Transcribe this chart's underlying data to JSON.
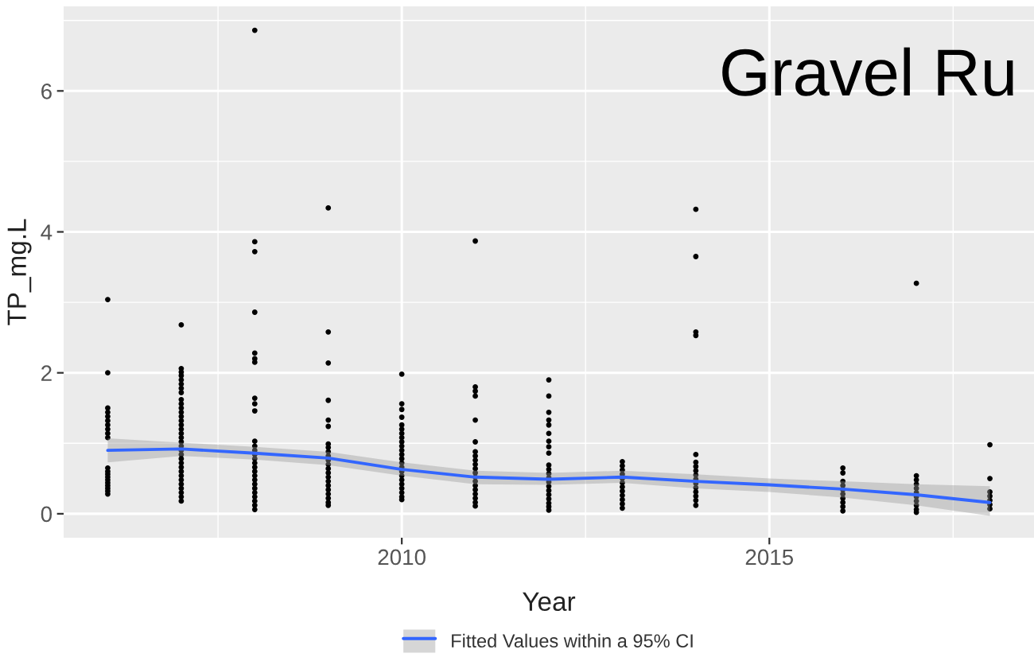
{
  "chart_data": {
    "type": "scatter",
    "title": "Gravel Ru",
    "xlabel": "Year",
    "ylabel": "TP_mg.L",
    "xlim": [
      2005.4,
      2018.6
    ],
    "xticks": [
      2010,
      2015
    ],
    "ylim": [
      -0.34,
      7.2
    ],
    "yticks": [
      0,
      2,
      4,
      6
    ],
    "grid": true,
    "legend": "bottom",
    "series": [
      {
        "color": "#000000",
        "marker": "circle",
        "x": [
          2006,
          2006,
          2006,
          2006,
          2006,
          2006,
          2006,
          2006,
          2006,
          2006,
          2006,
          2006,
          2006,
          2006,
          2006,
          2006,
          2006,
          2006,
          2006,
          2006,
          2007,
          2007,
          2007,
          2007,
          2007,
          2007,
          2007,
          2007,
          2007,
          2007,
          2007,
          2007,
          2007,
          2007,
          2007,
          2007,
          2007,
          2007,
          2007,
          2007,
          2007,
          2007,
          2007,
          2007,
          2007,
          2007,
          2007,
          2007,
          2007,
          2007,
          2007,
          2007,
          2007,
          2008,
          2008,
          2008,
          2008,
          2008,
          2008,
          2008,
          2008,
          2008,
          2008,
          2008,
          2008,
          2008,
          2008,
          2008,
          2008,
          2008,
          2008,
          2008,
          2008,
          2008,
          2008,
          2008,
          2008,
          2008,
          2008,
          2008,
          2009,
          2009,
          2009,
          2009,
          2009,
          2009,
          2009,
          2009,
          2009,
          2009,
          2009,
          2009,
          2009,
          2009,
          2009,
          2009,
          2009,
          2009,
          2009,
          2009,
          2009,
          2009,
          2010,
          2010,
          2010,
          2010,
          2010,
          2010,
          2010,
          2010,
          2010,
          2010,
          2010,
          2010,
          2010,
          2010,
          2010,
          2010,
          2010,
          2010,
          2010,
          2010,
          2010,
          2010,
          2010,
          2011,
          2011,
          2011,
          2011,
          2011,
          2011,
          2011,
          2011,
          2011,
          2011,
          2011,
          2011,
          2011,
          2011,
          2011,
          2011,
          2011,
          2011,
          2011,
          2011,
          2012,
          2012,
          2012,
          2012,
          2012,
          2012,
          2012,
          2012,
          2012,
          2012,
          2012,
          2012,
          2012,
          2012,
          2012,
          2012,
          2012,
          2012,
          2012,
          2012,
          2012,
          2013,
          2013,
          2013,
          2013,
          2013,
          2013,
          2013,
          2013,
          2013,
          2013,
          2013,
          2013,
          2014,
          2014,
          2014,
          2014,
          2014,
          2014,
          2014,
          2014,
          2014,
          2014,
          2014,
          2014,
          2014,
          2014,
          2014,
          2014,
          2016,
          2016,
          2016,
          2016,
          2016,
          2016,
          2016,
          2016,
          2016,
          2016,
          2017,
          2017,
          2017,
          2017,
          2017,
          2017,
          2017,
          2017,
          2017,
          2017,
          2017,
          2018,
          2018,
          2018,
          2018,
          2018,
          2018,
          2018
        ],
        "values": [
          3.04,
          2.0,
          1.5,
          1.44,
          1.38,
          1.32,
          1.26,
          1.2,
          1.14,
          1.08,
          0.65,
          0.6,
          0.56,
          0.52,
          0.48,
          0.44,
          0.4,
          0.36,
          0.32,
          0.28,
          2.68,
          2.06,
          2.01,
          1.96,
          1.9,
          1.84,
          1.78,
          1.72,
          1.62,
          1.56,
          1.5,
          1.44,
          1.38,
          1.32,
          1.26,
          1.2,
          1.14,
          1.08,
          1.02,
          0.96,
          0.9,
          0.84,
          0.78,
          0.72,
          0.66,
          0.6,
          0.54,
          0.48,
          0.42,
          0.36,
          0.3,
          0.24,
          0.18,
          6.86,
          3.86,
          3.72,
          2.86,
          2.28,
          2.2,
          2.15,
          1.64,
          1.56,
          1.46,
          1.03,
          0.96,
          0.9,
          0.84,
          0.78,
          0.72,
          0.66,
          0.6,
          0.54,
          0.48,
          0.42,
          0.36,
          0.3,
          0.24,
          0.18,
          0.12,
          0.06,
          4.34,
          2.58,
          2.14,
          1.61,
          1.33,
          1.24,
          0.99,
          0.94,
          0.88,
          0.82,
          0.76,
          0.7,
          0.64,
          0.58,
          0.52,
          0.46,
          0.4,
          0.34,
          0.28,
          0.22,
          0.16,
          0.12,
          1.98,
          1.56,
          1.48,
          1.37,
          1.26,
          1.2,
          1.14,
          1.08,
          1.02,
          0.96,
          0.9,
          0.84,
          0.78,
          0.72,
          0.66,
          0.6,
          0.54,
          0.48,
          0.42,
          0.36,
          0.3,
          0.24,
          0.2,
          3.87,
          1.8,
          1.74,
          1.67,
          1.33,
          1.02,
          0.88,
          0.82,
          0.76,
          0.7,
          0.64,
          0.58,
          0.52,
          0.46,
          0.4,
          0.34,
          0.28,
          0.22,
          0.16,
          0.11,
          1.9,
          1.67,
          1.44,
          1.33,
          1.26,
          1.14,
          1.03,
          0.95,
          0.86,
          0.69,
          0.63,
          0.57,
          0.51,
          0.45,
          0.39,
          0.33,
          0.27,
          0.21,
          0.15,
          0.1,
          0.05,
          0.74,
          0.68,
          0.62,
          0.56,
          0.5,
          0.44,
          0.38,
          0.32,
          0.26,
          0.2,
          0.14,
          0.08,
          4.32,
          3.65,
          2.58,
          2.53,
          0.84,
          0.73,
          0.67,
          0.61,
          0.55,
          0.49,
          0.43,
          0.37,
          0.31,
          0.25,
          0.19,
          0.12,
          0.65,
          0.58,
          0.46,
          0.4,
          0.34,
          0.28,
          0.22,
          0.16,
          0.1,
          0.04,
          3.27,
          0.54,
          0.48,
          0.42,
          0.36,
          0.3,
          0.24,
          0.18,
          0.12,
          0.06,
          0.02,
          0.98,
          0.5,
          0.31,
          0.25,
          0.19,
          0.13,
          0.07
        ]
      },
      {
        "type": "line",
        "name": "Fitted Values within a 95% CI",
        "color": "#3366ff",
        "line_style": "solid",
        "x": [
          2006,
          2007,
          2008,
          2009,
          2010,
          2011,
          2012,
          2013,
          2014,
          2015,
          2016,
          2017,
          2018
        ],
        "values": [
          0.9,
          0.92,
          0.86,
          0.79,
          0.63,
          0.52,
          0.49,
          0.52,
          0.46,
          0.41,
          0.35,
          0.27,
          0.16
        ],
        "lower": [
          0.73,
          0.82,
          0.77,
          0.69,
          0.54,
          0.42,
          0.41,
          0.44,
          0.36,
          0.31,
          0.23,
          0.12,
          -0.03
        ],
        "upper": [
          1.07,
          1.01,
          0.95,
          0.88,
          0.73,
          0.61,
          0.58,
          0.61,
          0.56,
          0.5,
          0.46,
          0.42,
          0.39
        ]
      }
    ]
  }
}
